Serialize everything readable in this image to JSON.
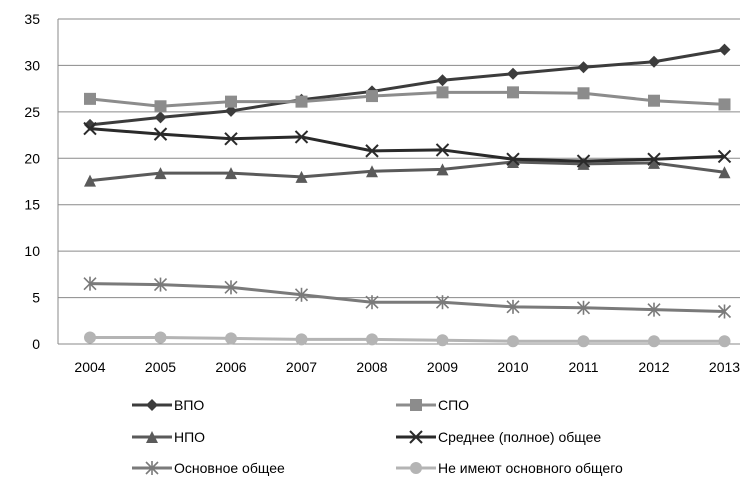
{
  "chart_data": {
    "type": "line",
    "title": "",
    "xlabel": "",
    "ylabel": "",
    "x": [
      "2004",
      "2005",
      "2006",
      "2007",
      "2008",
      "2009",
      "2010",
      "2011",
      "2012",
      "2013"
    ],
    "ylim": [
      0,
      35
    ],
    "yticks": [
      0,
      5,
      10,
      15,
      20,
      25,
      30,
      35
    ],
    "grid": "horizontal",
    "legend_position": "bottom",
    "series": [
      {
        "name": "ВПО",
        "marker": "diamond",
        "color": "#3c3c3c",
        "values": [
          23.6,
          24.4,
          25.1,
          26.3,
          27.2,
          28.4,
          29.1,
          29.8,
          30.4,
          31.7
        ]
      },
      {
        "name": "СПО",
        "marker": "square",
        "color": "#8c8c8c",
        "values": [
          26.4,
          25.6,
          26.1,
          26.1,
          26.7,
          27.1,
          27.1,
          27.0,
          26.2,
          25.8
        ]
      },
      {
        "name": "НПО",
        "marker": "triangle",
        "color": "#5a5a5a",
        "values": [
          17.6,
          18.4,
          18.4,
          18.0,
          18.6,
          18.8,
          19.6,
          19.4,
          19.5,
          18.5
        ]
      },
      {
        "name": "Среднее (полное) общее",
        "marker": "x",
        "color": "#2a2a2a",
        "values": [
          23.2,
          22.6,
          22.1,
          22.3,
          20.8,
          20.9,
          19.9,
          19.7,
          19.9,
          20.2
        ]
      },
      {
        "name": "Основное общее",
        "marker": "asterisk",
        "color": "#7a7a7a",
        "values": [
          6.5,
          6.4,
          6.1,
          5.3,
          4.5,
          4.5,
          4.0,
          3.9,
          3.7,
          3.5
        ]
      },
      {
        "name": "Не имеют основного общего",
        "marker": "circle",
        "color": "#b4b4b4",
        "values": [
          0.7,
          0.7,
          0.6,
          0.5,
          0.5,
          0.4,
          0.3,
          0.3,
          0.3,
          0.3
        ]
      }
    ]
  }
}
